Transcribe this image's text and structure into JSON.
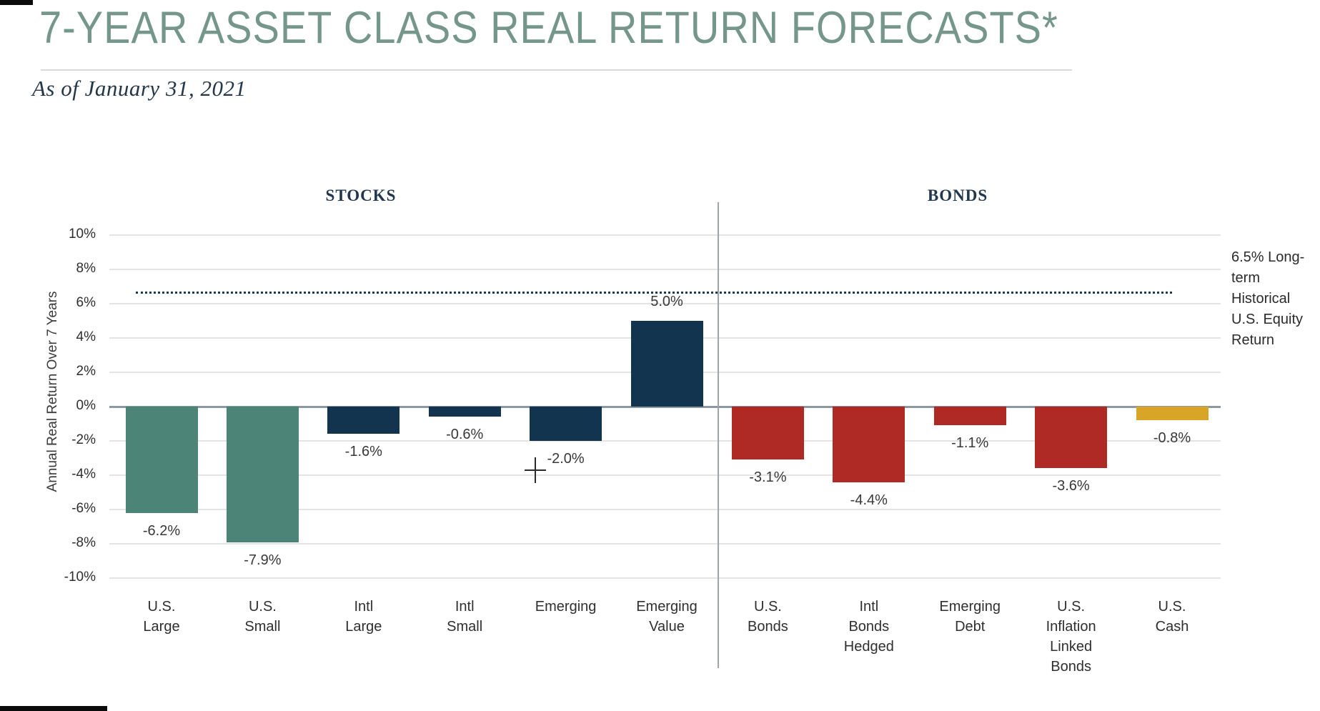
{
  "page": {
    "title": "7-YEAR ASSET CLASS REAL RETURN FORECASTS*",
    "subtitle": "As of January 31, 2021"
  },
  "chart_data": {
    "type": "bar",
    "title": "7-YEAR ASSET CLASS REAL RETURN FORECASTS*",
    "subtitle": "As of January 31, 2021",
    "ylabel": "Annual Real Return Over 7 Years",
    "ylim": [
      -10,
      10
    ],
    "ytick_step": 2,
    "yticks": [
      "10%",
      "8%",
      "6%",
      "4%",
      "2%",
      "0%",
      "-2%",
      "-4%",
      "-6%",
      "-8%",
      "-10%"
    ],
    "grid": true,
    "legend": "none",
    "palette": {
      "us_stock_teal": "#4C8577",
      "intl_em_stock_navy": "#13344E",
      "bond_red": "#B02A25",
      "cash_gold": "#D9A527"
    },
    "sections": [
      {
        "label": "STOCKS",
        "bars": [
          {
            "category": "U.S. Large",
            "category_lines": [
              "U.S.",
              "Large"
            ],
            "value": -6.2,
            "value_label": "-6.2%",
            "color": "us_stock_teal"
          },
          {
            "category": "U.S. Small",
            "category_lines": [
              "U.S.",
              "Small"
            ],
            "value": -7.9,
            "value_label": "-7.9%",
            "color": "us_stock_teal"
          },
          {
            "category": "Intl Large",
            "category_lines": [
              "Intl",
              "Large"
            ],
            "value": -1.6,
            "value_label": "-1.6%",
            "color": "intl_em_stock_navy"
          },
          {
            "category": "Intl Small",
            "category_lines": [
              "Intl",
              "Small"
            ],
            "value": -0.6,
            "value_label": "-0.6%",
            "color": "intl_em_stock_navy"
          },
          {
            "category": "Emerging",
            "category_lines": [
              "Emerging"
            ],
            "value": -2.0,
            "value_label": "-2.0%",
            "color": "intl_em_stock_navy"
          },
          {
            "category": "Emerging Value",
            "category_lines": [
              "Emerging",
              "Value"
            ],
            "value": 5.0,
            "value_label": "5.0%",
            "color": "intl_em_stock_navy"
          }
        ]
      },
      {
        "label": "BONDS",
        "bars": [
          {
            "category": "U.S. Bonds",
            "category_lines": [
              "U.S.",
              "Bonds"
            ],
            "value": -3.1,
            "value_label": "-3.1%",
            "color": "bond_red"
          },
          {
            "category": "Intl Bonds Hedged",
            "category_lines": [
              "Intl",
              "Bonds",
              "Hedged"
            ],
            "value": -4.4,
            "value_label": "-4.4%",
            "color": "bond_red"
          },
          {
            "category": "Emerging Debt",
            "category_lines": [
              "Emerging",
              "Debt"
            ],
            "value": -1.1,
            "value_label": "-1.1%",
            "color": "bond_red"
          },
          {
            "category": "U.S. Inflation Linked Bonds",
            "category_lines": [
              "U.S.",
              "Inflation",
              "Linked",
              "Bonds"
            ],
            "value": -3.6,
            "value_label": "-3.6%",
            "color": "bond_red"
          },
          {
            "category": "U.S. Cash",
            "category_lines": [
              "U.S.",
              "Cash"
            ],
            "value": -0.8,
            "value_label": "-0.8%",
            "color": "cash_gold"
          }
        ]
      }
    ],
    "reference_line": {
      "value": 6.5,
      "style": "dotted",
      "color": "#1C3A57",
      "label": "6.5% Long-term Historical U.S. Equity Return",
      "label_lines": [
        "6.5% Long-",
        "term",
        "Historical",
        "U.S. Equity",
        "Return"
      ]
    }
  }
}
